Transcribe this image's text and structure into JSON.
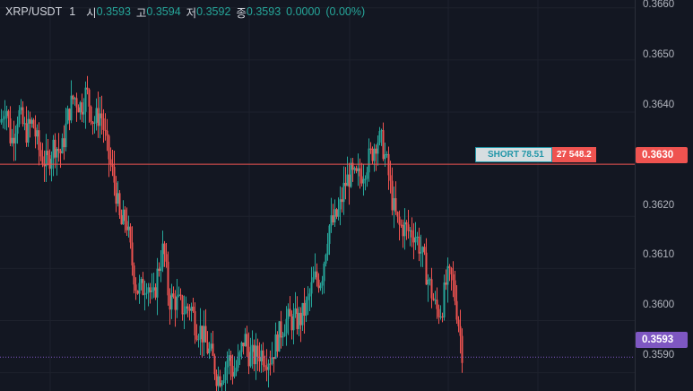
{
  "header": {
    "symbol": "XRP/USDT",
    "interval": "1",
    "open_label": "시",
    "open_value": "0.3593",
    "high_label": "고",
    "high_value": "0.3594",
    "low_label": "저",
    "low_value": "0.3592",
    "close_label": "종",
    "close_value": "0.3593",
    "change": "0.0000",
    "change_pct": "(0.00%)"
  },
  "price_axis": {
    "ticks": [
      "0.3660",
      "0.3650",
      "0.3640",
      "0.3620",
      "0.3610",
      "0.3600",
      "0.3590"
    ],
    "position_price_label": "0.3630",
    "current_price_label": "0.3593"
  },
  "position": {
    "side_label": "SHORT 78.51",
    "quantity_label": "27 548.2",
    "price": 0.363
  },
  "colors": {
    "background": "#131722",
    "up": "#26a69a",
    "down": "#ef5350",
    "position_line": "#ef5350",
    "current_price_tag": "#7e57c2",
    "grid": "#1e222d"
  },
  "chart_data": {
    "type": "candlestick",
    "y_range": [
      0.35865,
      0.36615
    ],
    "current_price": 0.3593,
    "position_line": 0.363,
    "close_path": [
      [
        0,
        0.3638
      ],
      [
        6,
        0.3642
      ],
      [
        12,
        0.3634
      ],
      [
        20,
        0.364
      ],
      [
        28,
        0.3636
      ],
      [
        36,
        0.3638
      ],
      [
        44,
        0.3632
      ],
      [
        52,
        0.363
      ],
      [
        60,
        0.3634
      ],
      [
        68,
        0.3632
      ],
      [
        76,
        0.364
      ],
      [
        82,
        0.3643
      ],
      [
        90,
        0.3641
      ],
      [
        96,
        0.3644
      ],
      [
        104,
        0.3638
      ],
      [
        112,
        0.364
      ],
      [
        120,
        0.3632
      ],
      [
        128,
        0.3626
      ],
      [
        134,
        0.3618
      ],
      [
        140,
        0.362
      ],
      [
        146,
        0.3612
      ],
      [
        152,
        0.3606
      ],
      [
        158,
        0.3606
      ],
      [
        164,
        0.3608
      ],
      [
        170,
        0.3603
      ],
      [
        176,
        0.361
      ],
      [
        182,
        0.3614
      ],
      [
        188,
        0.3604
      ],
      [
        194,
        0.3604
      ],
      [
        200,
        0.3603
      ],
      [
        206,
        0.3602
      ],
      [
        212,
        0.3603
      ],
      [
        218,
        0.3599
      ],
      [
        224,
        0.3598
      ],
      [
        230,
        0.3595
      ],
      [
        236,
        0.3593
      ],
      [
        242,
        0.3589
      ],
      [
        248,
        0.359
      ],
      [
        254,
        0.3593
      ],
      [
        260,
        0.359
      ],
      [
        266,
        0.3592
      ],
      [
        272,
        0.3597
      ],
      [
        278,
        0.3593
      ],
      [
        284,
        0.3593
      ],
      [
        290,
        0.3594
      ],
      [
        296,
        0.3593
      ],
      [
        302,
        0.3593
      ],
      [
        310,
        0.3597
      ],
      [
        318,
        0.36
      ],
      [
        326,
        0.36
      ],
      [
        334,
        0.36
      ],
      [
        342,
        0.3603
      ],
      [
        350,
        0.3608
      ],
      [
        358,
        0.3608
      ],
      [
        366,
        0.3618
      ],
      [
        372,
        0.3619
      ],
      [
        378,
        0.3621
      ],
      [
        384,
        0.3626
      ],
      [
        390,
        0.3628
      ],
      [
        396,
        0.3627
      ],
      [
        402,
        0.3628
      ],
      [
        408,
        0.363
      ],
      [
        414,
        0.3632
      ],
      [
        420,
        0.3635
      ],
      [
        426,
        0.3634
      ],
      [
        432,
        0.3629
      ],
      [
        438,
        0.3622
      ],
      [
        444,
        0.3618
      ],
      [
        450,
        0.3618
      ],
      [
        456,
        0.3617
      ],
      [
        462,
        0.3617
      ],
      [
        468,
        0.3614
      ],
      [
        474,
        0.361
      ],
      [
        480,
        0.3606
      ],
      [
        486,
        0.3602
      ],
      [
        492,
        0.3602
      ],
      [
        498,
        0.3608
      ],
      [
        504,
        0.3608
      ],
      [
        510,
        0.3601
      ],
      [
        516,
        0.3593
      ]
    ]
  }
}
